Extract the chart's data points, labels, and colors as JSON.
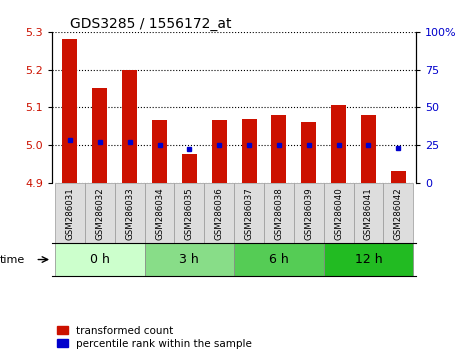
{
  "title": "GDS3285 / 1556172_at",
  "samples": [
    "GSM286031",
    "GSM286032",
    "GSM286033",
    "GSM286034",
    "GSM286035",
    "GSM286036",
    "GSM286037",
    "GSM286038",
    "GSM286039",
    "GSM286040",
    "GSM286041",
    "GSM286042"
  ],
  "bar_values": [
    5.28,
    5.15,
    5.2,
    5.065,
    4.975,
    5.065,
    5.068,
    5.08,
    5.06,
    5.105,
    5.08,
    4.93
  ],
  "percentile_values": [
    28,
    27,
    27,
    25,
    22,
    25,
    25,
    25,
    25,
    25,
    25,
    23
  ],
  "bar_bottom": 4.9,
  "ylim_left": [
    4.9,
    5.3
  ],
  "ylim_right": [
    0,
    100
  ],
  "yticks_left": [
    4.9,
    5.0,
    5.1,
    5.2,
    5.3
  ],
  "yticks_right": [
    0,
    25,
    50,
    75,
    100
  ],
  "bar_color": "#cc1100",
  "dot_color": "#0000cc",
  "groups": [
    {
      "label": "0 h",
      "start": 0,
      "end": 3,
      "color": "#ccffcc"
    },
    {
      "label": "3 h",
      "start": 3,
      "end": 6,
      "color": "#88dd88"
    },
    {
      "label": "6 h",
      "start": 6,
      "end": 9,
      "color": "#55cc55"
    },
    {
      "label": "12 h",
      "start": 9,
      "end": 12,
      "color": "#22bb22"
    }
  ],
  "bar_width": 0.5,
  "grid_color": "black",
  "time_label": "time",
  "legend_bar_label": "transformed count",
  "legend_dot_label": "percentile rank within the sample",
  "sample_box_color": "#dddddd",
  "sample_box_edge": "#999999"
}
